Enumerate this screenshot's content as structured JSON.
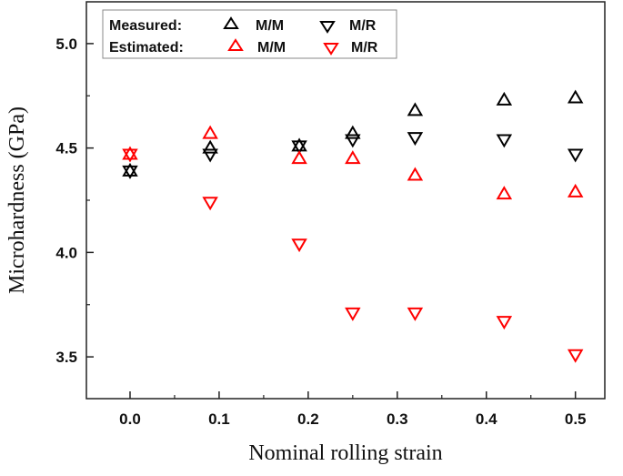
{
  "chart_data": {
    "type": "scatter",
    "xlabel": "Nominal rolling strain",
    "ylabel": "Microhardness (GPa)",
    "xlim": [
      -0.049,
      0.533
    ],
    "ylim": [
      3.3,
      5.2
    ],
    "xticks": [
      "0.0",
      "0.1",
      "0.2",
      "0.3",
      "0.4",
      "0.5"
    ],
    "yticks": [
      "3.5",
      "4.0",
      "4.5",
      "5.0"
    ],
    "grid": false,
    "legend_position": "top-left",
    "legend": {
      "measured_label": "Measured:",
      "estimated_label": "Estimated:",
      "mm_label": "M/M",
      "mr_label": "M/R"
    },
    "series": [
      {
        "group": "Measured",
        "name": "M/M",
        "marker": "triangle-up",
        "color": "#000000",
        "x": [
          0,
          0.09,
          0.19,
          0.25,
          0.32,
          0.42,
          0.5
        ],
        "y": [
          4.39,
          4.5,
          4.51,
          4.57,
          4.68,
          4.73,
          4.74
        ]
      },
      {
        "group": "Measured",
        "name": "M/R",
        "marker": "triangle-down",
        "color": "#000000",
        "x": [
          0,
          0.09,
          0.19,
          0.25,
          0.32,
          0.42,
          0.5
        ],
        "y": [
          4.39,
          4.47,
          4.51,
          4.54,
          4.55,
          4.54,
          4.47
        ]
      },
      {
        "group": "Estimated",
        "name": "M/M",
        "marker": "triangle-up",
        "color": "#ff0000",
        "x": [
          0,
          0.09,
          0.19,
          0.25,
          0.32,
          0.42,
          0.5
        ],
        "y": [
          4.47,
          4.57,
          4.45,
          4.45,
          4.37,
          4.28,
          4.29
        ]
      },
      {
        "group": "Estimated",
        "name": "M/R",
        "marker": "triangle-down",
        "color": "#ff0000",
        "x": [
          0,
          0.09,
          0.19,
          0.25,
          0.32,
          0.42,
          0.5
        ],
        "y": [
          4.47,
          4.24,
          4.04,
          3.71,
          3.71,
          3.67,
          3.51
        ]
      }
    ]
  }
}
